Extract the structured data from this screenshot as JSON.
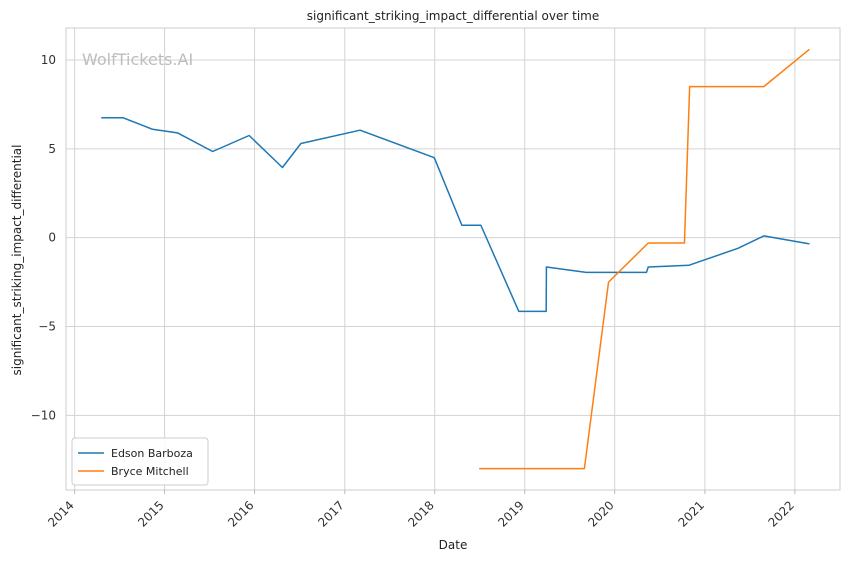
{
  "chart_data": {
    "type": "line",
    "title": "significant_striking_impact_differential over time",
    "xlabel": "Date",
    "ylabel": "significant_striking_impact_differential",
    "watermark": "WolfTickets.AI",
    "xlim": [
      "2013-11-27",
      "2022-07-03"
    ],
    "ylim": [
      -14.2,
      11.8
    ],
    "x_ticks": [
      "2014",
      "2015",
      "2016",
      "2017",
      "2018",
      "2019",
      "2020",
      "2021",
      "2022"
    ],
    "y_ticks": [
      10,
      5,
      0,
      -5,
      -10
    ],
    "y_tick_labels": [
      "10",
      "5",
      "0",
      "−5",
      "−10"
    ],
    "grid": true,
    "legend_position": "lower-left",
    "series": [
      {
        "name": "Edson Barboza",
        "color": "#1f77b4",
        "points": [
          [
            "2014-04-19",
            6.75
          ],
          [
            "2014-07-16",
            6.75
          ],
          [
            "2014-11-13",
            6.1
          ],
          [
            "2015-02-22",
            5.9
          ],
          [
            "2015-07-15",
            4.85
          ],
          [
            "2015-12-10",
            5.75
          ],
          [
            "2016-04-23",
            3.95
          ],
          [
            "2016-07-07",
            5.3
          ],
          [
            "2017-03-04",
            6.05
          ],
          [
            "2017-12-30",
            4.5
          ],
          [
            "2018-04-21",
            0.7
          ],
          [
            "2018-07-07",
            0.7
          ],
          [
            "2018-12-08",
            -4.15
          ],
          [
            "2019-03-29",
            -4.15
          ],
          [
            "2019-03-30",
            -1.65
          ],
          [
            "2019-09-07",
            -1.95
          ],
          [
            "2020-05-09",
            -1.95
          ],
          [
            "2020-05-16",
            -1.65
          ],
          [
            "2020-10-29",
            -1.55
          ],
          [
            "2021-05-15",
            -0.6
          ],
          [
            "2021-08-28",
            0.1
          ],
          [
            "2022-03-01",
            -0.35
          ]
        ]
      },
      {
        "name": "Bryce Mitchell",
        "color": "#ff7f0e",
        "points": [
          [
            "2018-06-30",
            -13.0
          ],
          [
            "2019-08-31",
            -13.0
          ],
          [
            "2019-12-07",
            -2.5
          ],
          [
            "2020-05-16",
            -0.3
          ],
          [
            "2020-10-10",
            -0.3
          ],
          [
            "2020-10-31",
            8.5
          ],
          [
            "2021-08-28",
            8.5
          ],
          [
            "2022-03-01",
            10.6
          ]
        ]
      }
    ]
  }
}
